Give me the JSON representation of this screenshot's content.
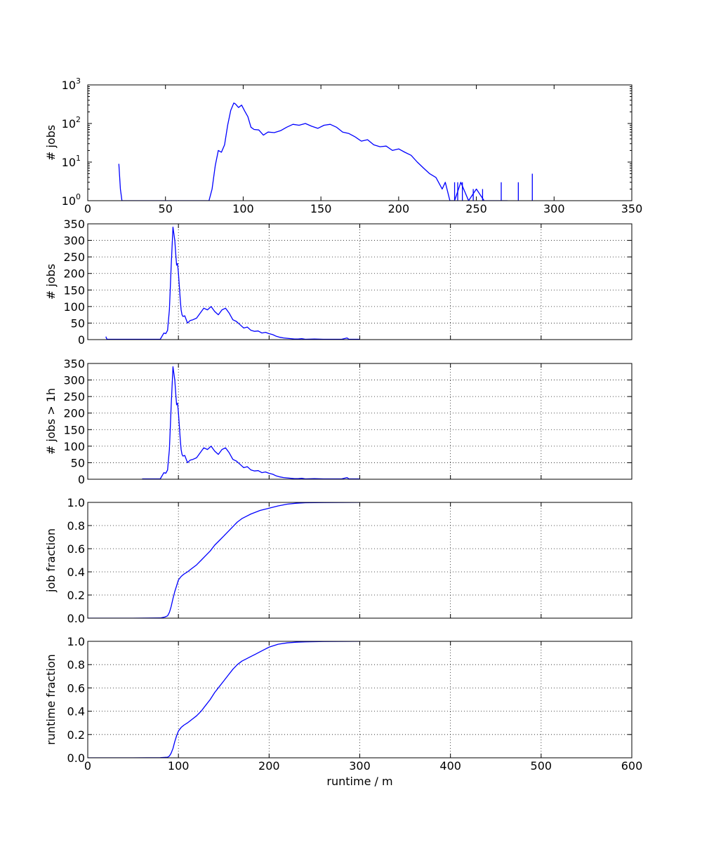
{
  "chart_data": [
    {
      "type": "line",
      "yscale": "log",
      "ylabel": "# jobs",
      "xlabel": "",
      "xlim": [
        0,
        350
      ],
      "ylim": [
        1,
        1000
      ],
      "xticks": [
        "0",
        "50",
        "100",
        "150",
        "200",
        "250",
        "300",
        "350"
      ],
      "yticks": [
        "10^0",
        "10^1",
        "10^2",
        "10^3"
      ],
      "grid": false,
      "color": "#0000ff",
      "series": [
        {
          "x": [
            20,
            21,
            22,
            78,
            80,
            82,
            84,
            86,
            88,
            90,
            92,
            94,
            95,
            97,
            99,
            101,
            103,
            105,
            107,
            110,
            113,
            116,
            120,
            124,
            128,
            132,
            136,
            140,
            144,
            148,
            152,
            156,
            160,
            164,
            168,
            172,
            176,
            180,
            184,
            188,
            192,
            196,
            200,
            204,
            208,
            212,
            216,
            220,
            224,
            228,
            230,
            233,
            236,
            240,
            245,
            250,
            255,
            260,
            265,
            270
          ],
          "y": [
            9,
            2,
            1,
            1,
            2,
            8,
            20,
            18,
            28,
            90,
            220,
            340,
            320,
            260,
            300,
            210,
            150,
            80,
            70,
            68,
            50,
            60,
            58,
            65,
            80,
            95,
            90,
            100,
            85,
            75,
            90,
            95,
            80,
            60,
            55,
            45,
            35,
            38,
            28,
            25,
            26,
            20,
            22,
            18,
            15,
            10,
            7,
            5,
            4,
            2,
            3,
            1,
            1,
            3,
            1,
            2,
            1,
            1,
            1,
            1
          ]
        }
      ],
      "spikes": [
        {
          "x": 236,
          "y": 3
        },
        {
          "x": 238,
          "y": 3
        },
        {
          "x": 241,
          "y": 3
        },
        {
          "x": 248,
          "y": 2
        },
        {
          "x": 254,
          "y": 2
        },
        {
          "x": 266,
          "y": 3
        },
        {
          "x": 277,
          "y": 3
        },
        {
          "x": 286,
          "y": 5
        }
      ]
    },
    {
      "type": "line",
      "ylabel": "# jobs",
      "xlabel": "",
      "xlim": [
        0,
        600
      ],
      "ylim": [
        0,
        350
      ],
      "xticks": [
        "0",
        "100",
        "200",
        "300",
        "400",
        "500",
        "600"
      ],
      "yticks": [
        "0",
        "50",
        "100",
        "150",
        "200",
        "250",
        "300",
        "350"
      ],
      "grid": true,
      "color": "#0000ff",
      "series": [
        {
          "x": [
            20,
            21,
            22,
            30,
            60,
            80,
            84,
            86,
            88,
            90,
            92,
            94,
            95,
            96,
            97,
            98,
            99,
            100,
            101,
            102,
            103,
            104,
            105,
            107,
            110,
            113,
            116,
            120,
            124,
            128,
            132,
            136,
            140,
            144,
            148,
            152,
            156,
            160,
            164,
            168,
            172,
            176,
            180,
            184,
            188,
            192,
            196,
            200,
            204,
            208,
            212,
            216,
            220,
            224,
            228,
            232,
            236,
            240,
            250,
            260,
            270,
            280,
            286,
            288,
            300
          ],
          "y": [
            9,
            2,
            1,
            1,
            1,
            1,
            20,
            18,
            28,
            90,
            220,
            340,
            320,
            300,
            260,
            225,
            230,
            200,
            160,
            120,
            90,
            75,
            70,
            72,
            50,
            58,
            60,
            65,
            80,
            95,
            90,
            100,
            85,
            75,
            90,
            95,
            80,
            60,
            55,
            45,
            35,
            38,
            28,
            25,
            26,
            20,
            22,
            18,
            15,
            10,
            7,
            5,
            4,
            3,
            2,
            2,
            3,
            1,
            2,
            1,
            1,
            1,
            5,
            1,
            1
          ]
        }
      ]
    },
    {
      "type": "line",
      "ylabel": "# jobs > 1h",
      "xlabel": "",
      "xlim": [
        0,
        600
      ],
      "ylim": [
        0,
        350
      ],
      "xticks": [
        "0",
        "100",
        "200",
        "300",
        "400",
        "500",
        "600"
      ],
      "yticks": [
        "0",
        "50",
        "100",
        "150",
        "200",
        "250",
        "300",
        "350"
      ],
      "grid": true,
      "color": "#0000ff",
      "series": [
        {
          "x": [
            60,
            80,
            84,
            86,
            88,
            90,
            92,
            94,
            95,
            96,
            97,
            98,
            99,
            100,
            101,
            102,
            103,
            104,
            105,
            107,
            110,
            113,
            116,
            120,
            124,
            128,
            132,
            136,
            140,
            144,
            148,
            152,
            156,
            160,
            164,
            168,
            172,
            176,
            180,
            184,
            188,
            192,
            196,
            200,
            204,
            208,
            212,
            216,
            220,
            224,
            228,
            232,
            236,
            240,
            250,
            260,
            270,
            280,
            286,
            288,
            300
          ],
          "y": [
            1,
            1,
            20,
            18,
            28,
            90,
            220,
            340,
            320,
            300,
            260,
            225,
            230,
            200,
            160,
            120,
            90,
            75,
            70,
            72,
            50,
            58,
            60,
            65,
            80,
            95,
            90,
            100,
            85,
            75,
            90,
            95,
            80,
            60,
            55,
            45,
            35,
            38,
            28,
            25,
            26,
            20,
            22,
            18,
            15,
            10,
            7,
            5,
            4,
            3,
            2,
            2,
            3,
            1,
            2,
            1,
            1,
            1,
            5,
            1,
            1
          ]
        }
      ]
    },
    {
      "type": "line",
      "ylabel": "job fraction",
      "xlabel": "",
      "xlim": [
        0,
        600
      ],
      "ylim": [
        0,
        1
      ],
      "xticks": [
        "0",
        "100",
        "200",
        "300",
        "400",
        "500",
        "600"
      ],
      "yticks": [
        "0.0",
        "0.2",
        "0.4",
        "0.6",
        "0.8",
        "1.0"
      ],
      "grid": true,
      "color": "#0000ff",
      "series": [
        {
          "x": [
            0,
            50,
            80,
            85,
            88,
            90,
            92,
            94,
            96,
            98,
            100,
            103,
            106,
            110,
            115,
            120,
            125,
            130,
            135,
            140,
            145,
            150,
            155,
            160,
            165,
            170,
            175,
            180,
            185,
            190,
            195,
            200,
            210,
            220,
            230,
            240,
            260,
            300
          ],
          "y": [
            0,
            0,
            0.002,
            0.01,
            0.02,
            0.05,
            0.1,
            0.17,
            0.23,
            0.28,
            0.33,
            0.36,
            0.38,
            0.4,
            0.43,
            0.46,
            0.5,
            0.54,
            0.58,
            0.63,
            0.67,
            0.71,
            0.75,
            0.79,
            0.83,
            0.86,
            0.88,
            0.9,
            0.915,
            0.93,
            0.94,
            0.95,
            0.97,
            0.985,
            0.993,
            0.997,
            0.999,
            1.0
          ]
        }
      ]
    },
    {
      "type": "line",
      "ylabel": "runtime fraction",
      "xlabel": "runtime / m",
      "xlim": [
        0,
        600
      ],
      "ylim": [
        0,
        1
      ],
      "xticks": [
        "0",
        "100",
        "200",
        "300",
        "400",
        "500",
        "600"
      ],
      "yticks": [
        "0.0",
        "0.2",
        "0.4",
        "0.6",
        "0.8",
        "1.0"
      ],
      "grid": true,
      "color": "#0000ff",
      "series": [
        {
          "x": [
            0,
            50,
            80,
            88,
            90,
            92,
            94,
            96,
            98,
            100,
            103,
            106,
            110,
            115,
            120,
            125,
            130,
            135,
            140,
            145,
            150,
            155,
            160,
            165,
            170,
            175,
            180,
            185,
            190,
            195,
            200,
            210,
            220,
            230,
            240,
            260,
            300
          ],
          "y": [
            0,
            0,
            0.001,
            0.005,
            0.015,
            0.04,
            0.08,
            0.14,
            0.19,
            0.23,
            0.26,
            0.28,
            0.3,
            0.33,
            0.36,
            0.4,
            0.45,
            0.5,
            0.56,
            0.61,
            0.66,
            0.71,
            0.76,
            0.8,
            0.83,
            0.85,
            0.87,
            0.89,
            0.91,
            0.93,
            0.95,
            0.975,
            0.987,
            0.993,
            0.996,
            0.999,
            1.0
          ]
        }
      ]
    }
  ]
}
